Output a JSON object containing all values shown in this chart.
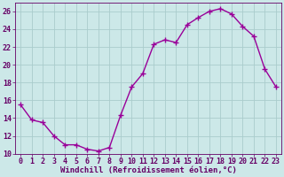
{
  "x": [
    0,
    1,
    2,
    3,
    4,
    5,
    6,
    7,
    8,
    9,
    10,
    11,
    12,
    13,
    14,
    15,
    16,
    17,
    18,
    19,
    20,
    21,
    22,
    23
  ],
  "y": [
    15.5,
    13.8,
    13.5,
    12.0,
    11.0,
    11.0,
    10.5,
    10.3,
    10.7,
    14.3,
    17.5,
    19.0,
    22.3,
    22.8,
    22.5,
    24.5,
    25.3,
    26.0,
    26.3,
    25.7,
    24.3,
    23.2,
    19.5,
    17.5
  ],
  "line_color": "#990099",
  "marker": "+",
  "marker_size": 4,
  "bg_color": "#cce8e8",
  "grid_color": "#aacccc",
  "xlabel": "Windchill (Refroidissement éolien,°C)",
  "xlim": [
    -0.5,
    23.5
  ],
  "ylim": [
    10,
    27
  ],
  "yticks": [
    10,
    12,
    14,
    16,
    18,
    20,
    22,
    24,
    26
  ],
  "xticks": [
    0,
    1,
    2,
    3,
    4,
    5,
    6,
    7,
    8,
    9,
    10,
    11,
    12,
    13,
    14,
    15,
    16,
    17,
    18,
    19,
    20,
    21,
    22,
    23
  ],
  "tick_label_color": "#660066",
  "axis_color": "#660066",
  "xlabel_color": "#660066",
  "xlabel_fontsize": 6.5,
  "tick_fontsize": 6.0,
  "linewidth": 1.0
}
